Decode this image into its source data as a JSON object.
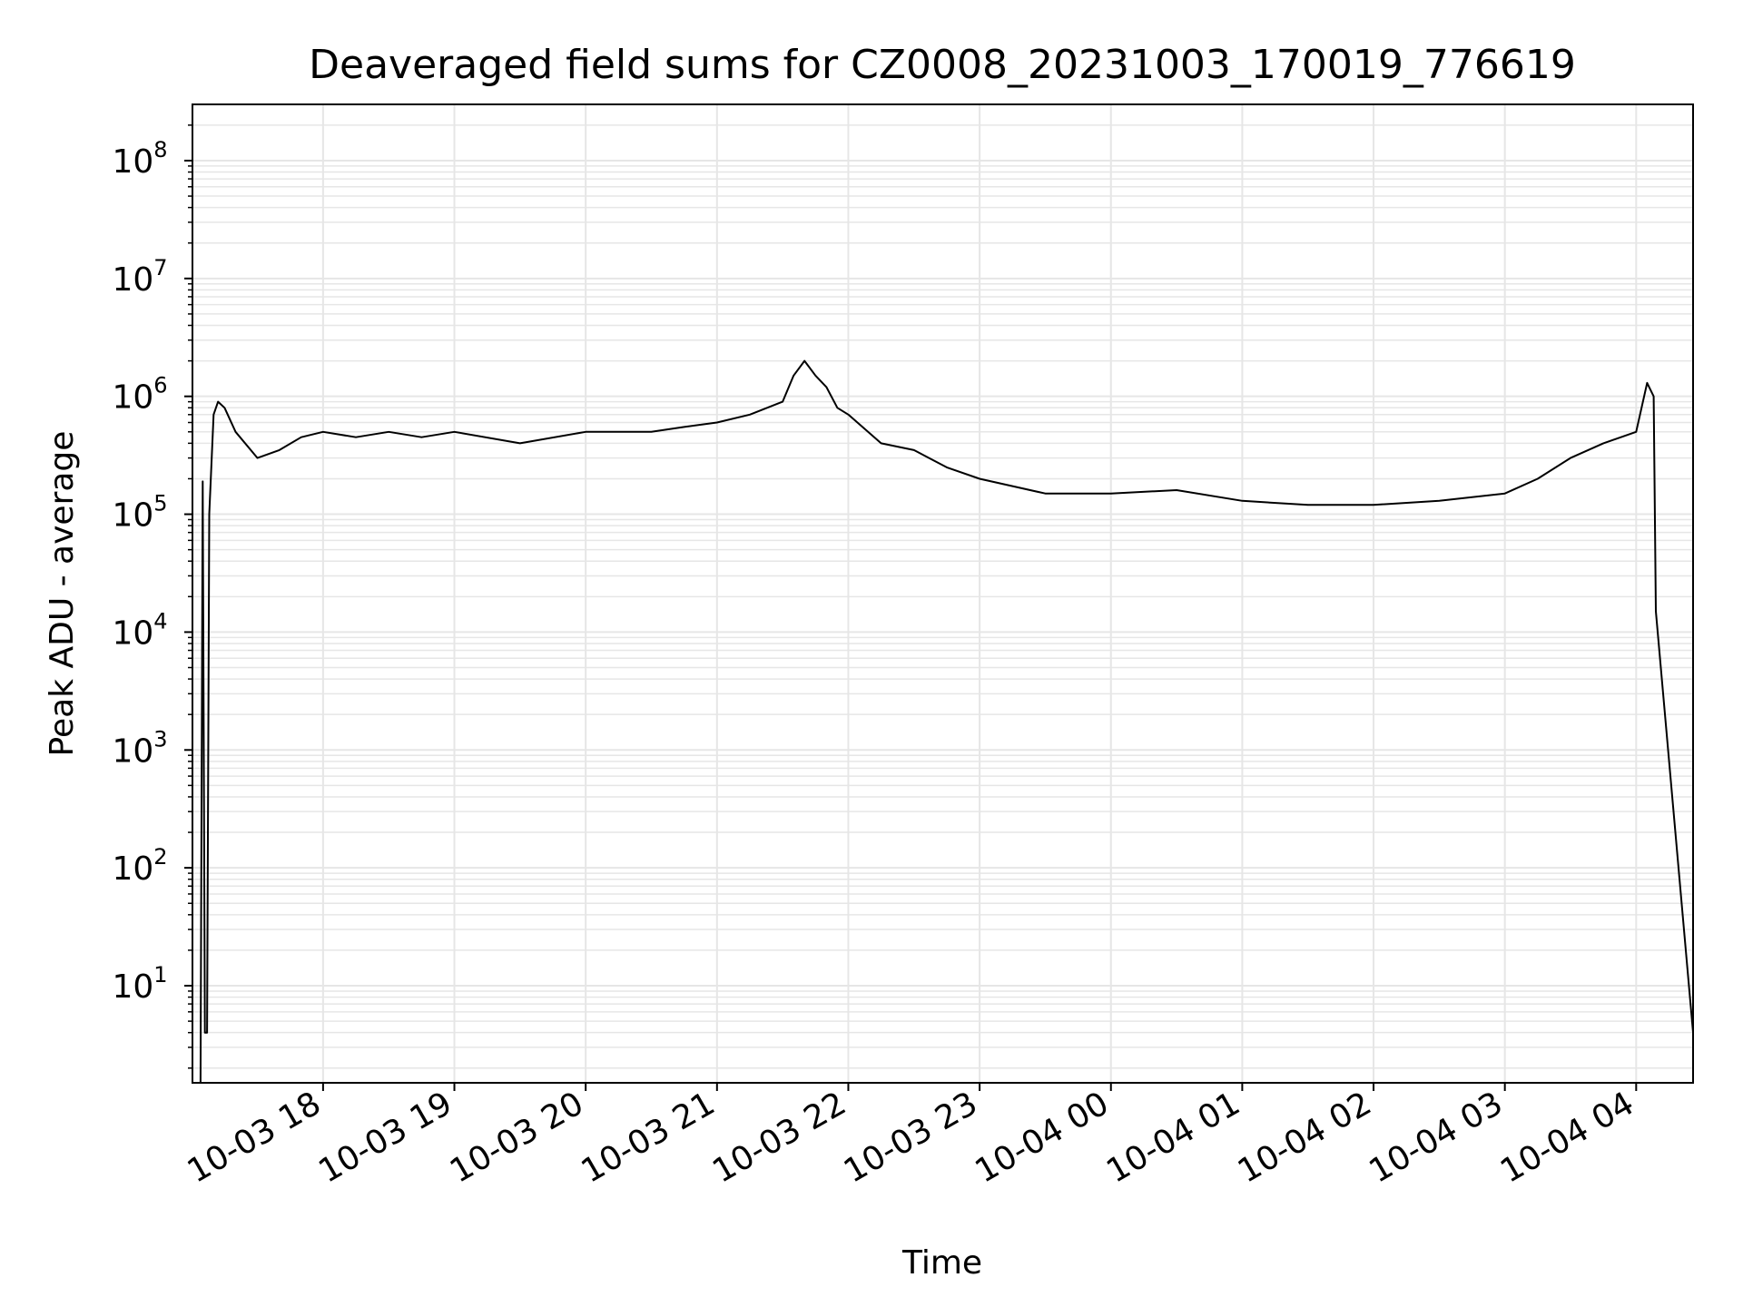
{
  "chart_data": {
    "type": "line",
    "title": "Deaveraged field sums for CZ0008_20231003_170019_776619",
    "xlabel": "Time",
    "ylabel": "Peak ADU - average",
    "yscale": "log",
    "ylim": [
      1.5,
      300000000
    ],
    "xlim": [
      "2023-10-03 17:00:19",
      "2023-10-04 04:26:00"
    ],
    "grid": true,
    "line_color": "#000000",
    "grid_color": "#e6e6e6",
    "x_ticks": [
      {
        "value": "2023-10-03 18:00",
        "label": "10-03 18"
      },
      {
        "value": "2023-10-03 19:00",
        "label": "10-03 19"
      },
      {
        "value": "2023-10-03 20:00",
        "label": "10-03 20"
      },
      {
        "value": "2023-10-03 21:00",
        "label": "10-03 21"
      },
      {
        "value": "2023-10-03 22:00",
        "label": "10-03 22"
      },
      {
        "value": "2023-10-03 23:00",
        "label": "10-03 23"
      },
      {
        "value": "2023-10-04 00:00",
        "label": "10-04 00"
      },
      {
        "value": "2023-10-04 01:00",
        "label": "10-04 01"
      },
      {
        "value": "2023-10-04 02:00",
        "label": "10-04 02"
      },
      {
        "value": "2023-10-04 03:00",
        "label": "10-04 03"
      },
      {
        "value": "2023-10-04 04:00",
        "label": "10-04 04"
      }
    ],
    "y_ticks": [
      {
        "value": 10,
        "base": "10",
        "exp": "1"
      },
      {
        "value": 100,
        "base": "10",
        "exp": "2"
      },
      {
        "value": 1000,
        "base": "10",
        "exp": "3"
      },
      {
        "value": 10000,
        "base": "10",
        "exp": "4"
      },
      {
        "value": 100000,
        "base": "10",
        "exp": "5"
      },
      {
        "value": 1000000,
        "base": "10",
        "exp": "6"
      },
      {
        "value": 10000000,
        "base": "10",
        "exp": "7"
      },
      {
        "value": 100000000,
        "base": "10",
        "exp": "8"
      }
    ],
    "series": [
      {
        "x": [
          "2023-10-03 17:04",
          "2023-10-03 17:05",
          "2023-10-03 17:06",
          "2023-10-03 17:07",
          "2023-10-03 17:08",
          "2023-10-03 17:10",
          "2023-10-03 17:12",
          "2023-10-03 17:15",
          "2023-10-03 17:20",
          "2023-10-03 17:30",
          "2023-10-03 17:40",
          "2023-10-03 17:50",
          "2023-10-03 18:00",
          "2023-10-03 18:15",
          "2023-10-03 18:30",
          "2023-10-03 18:45",
          "2023-10-03 19:00",
          "2023-10-03 19:30",
          "2023-10-03 20:00",
          "2023-10-03 20:30",
          "2023-10-03 20:45",
          "2023-10-03 21:00",
          "2023-10-03 21:15",
          "2023-10-03 21:30",
          "2023-10-03 21:35",
          "2023-10-03 21:40",
          "2023-10-03 21:45",
          "2023-10-03 21:50",
          "2023-10-03 21:55",
          "2023-10-03 22:00",
          "2023-10-03 22:15",
          "2023-10-03 22:30",
          "2023-10-03 22:45",
          "2023-10-03 23:00",
          "2023-10-03 23:30",
          "2023-10-04 00:00",
          "2023-10-04 00:30",
          "2023-10-04 01:00",
          "2023-10-04 01:30",
          "2023-10-04 02:00",
          "2023-10-04 02:30",
          "2023-10-04 03:00",
          "2023-10-04 03:15",
          "2023-10-04 03:30",
          "2023-10-04 03:45",
          "2023-10-04 04:00",
          "2023-10-04 04:05",
          "2023-10-04 04:08",
          "2023-10-04 04:09",
          "2023-10-04 04:26"
        ],
        "y": [
          1.5,
          190000,
          4,
          4,
          100000,
          700000,
          900000,
          800000,
          500000,
          300000,
          350000,
          450000,
          500000,
          450000,
          500000,
          450000,
          500000,
          400000,
          500000,
          500000,
          550000,
          600000,
          700000,
          900000,
          1500000,
          2000000,
          1500000,
          1200000,
          800000,
          700000,
          400000,
          350000,
          250000,
          200000,
          150000,
          150000,
          160000,
          130000,
          120000,
          120000,
          130000,
          150000,
          200000,
          300000,
          400000,
          500000,
          1300000,
          1000000,
          15000,
          4
        ]
      }
    ]
  }
}
